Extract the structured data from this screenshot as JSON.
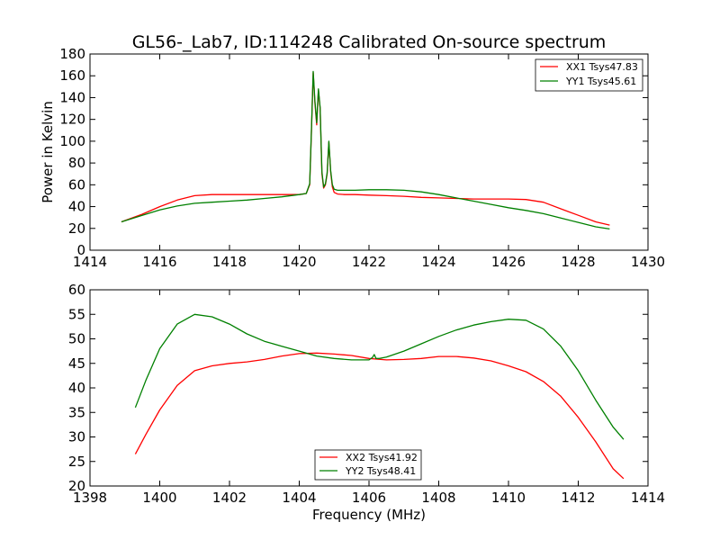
{
  "chart_data": [
    {
      "type": "line",
      "title": "GL56-_Lab7, ID:114248 Calibrated On-source spectrum",
      "xlabel": "",
      "ylabel": "Power in Kelvin",
      "xlim": [
        1414,
        1430
      ],
      "ylim": [
        0,
        180
      ],
      "xticks": [
        "1414",
        "1416",
        "1418",
        "1420",
        "1422",
        "1424",
        "1426",
        "1428",
        "1430"
      ],
      "yticks": [
        "0",
        "20",
        "40",
        "60",
        "80",
        "100",
        "120",
        "140",
        "160",
        "180"
      ],
      "legend_position": "upper right",
      "grid": false,
      "series": [
        {
          "name": "XX1 Tsys47.83",
          "color": "#ff0000",
          "x": [
            1414.9,
            1415.5,
            1416.0,
            1416.5,
            1417.0,
            1417.5,
            1418.0,
            1418.5,
            1419.0,
            1419.5,
            1420.0,
            1420.2,
            1420.3,
            1420.35,
            1420.4,
            1420.45,
            1420.5,
            1420.55,
            1420.6,
            1420.65,
            1420.7,
            1420.75,
            1420.8,
            1420.85,
            1420.9,
            1420.95,
            1421.0,
            1421.1,
            1421.3,
            1421.6,
            1422.0,
            1422.5,
            1423.0,
            1423.5,
            1424.0,
            1424.5,
            1425.0,
            1425.5,
            1426.0,
            1426.5,
            1427.0,
            1427.5,
            1428.0,
            1428.5,
            1428.9
          ],
          "y": [
            26,
            33,
            40,
            46,
            50,
            51,
            51,
            51,
            51,
            51,
            51,
            52,
            60,
            110,
            163,
            135,
            115,
            147,
            130,
            70,
            57,
            60,
            70,
            99,
            72,
            58,
            53,
            51.5,
            51,
            51,
            50.5,
            50,
            49.5,
            48.5,
            48,
            47.5,
            47,
            47,
            47,
            46.5,
            44,
            38,
            32,
            26,
            23
          ]
        },
        {
          "name": "YY1 Tsys45.61",
          "color": "#008000",
          "x": [
            1414.9,
            1415.5,
            1416.0,
            1416.5,
            1417.0,
            1417.5,
            1418.0,
            1418.5,
            1419.0,
            1419.5,
            1420.0,
            1420.2,
            1420.3,
            1420.35,
            1420.4,
            1420.45,
            1420.5,
            1420.55,
            1420.6,
            1420.65,
            1420.7,
            1420.75,
            1420.8,
            1420.85,
            1420.9,
            1420.95,
            1421.0,
            1421.1,
            1421.3,
            1421.6,
            1422.0,
            1422.5,
            1423.0,
            1423.5,
            1424.0,
            1424.5,
            1425.0,
            1425.5,
            1426.0,
            1426.5,
            1427.0,
            1427.5,
            1428.0,
            1428.5,
            1428.9
          ],
          "y": [
            26,
            32,
            37,
            40.5,
            43,
            44,
            45,
            46,
            47.5,
            49,
            51,
            52,
            61,
            112,
            164,
            137,
            117,
            148,
            131,
            72,
            58,
            61,
            71,
            100,
            73,
            60,
            56,
            55,
            55,
            55,
            55.5,
            55.5,
            55,
            53.5,
            51,
            48,
            45,
            42,
            39,
            36.5,
            33.5,
            29.5,
            25.5,
            21.5,
            19.5
          ]
        }
      ]
    },
    {
      "type": "line",
      "title": "",
      "xlabel": "Frequency (MHz)",
      "ylabel": "",
      "xlim": [
        1398,
        1414
      ],
      "ylim": [
        20,
        60
      ],
      "xticks": [
        "1398",
        "1400",
        "1402",
        "1404",
        "1406",
        "1408",
        "1410",
        "1412",
        "1414"
      ],
      "yticks": [
        "20",
        "25",
        "30",
        "35",
        "40",
        "45",
        "50",
        "55",
        "60"
      ],
      "legend_position": "lower center",
      "grid": false,
      "series": [
        {
          "name": "XX2 Tsys41.92",
          "color": "#ff0000",
          "x": [
            1399.3,
            1399.6,
            1400.0,
            1400.5,
            1401.0,
            1401.5,
            1402.0,
            1402.5,
            1403.0,
            1403.5,
            1404.0,
            1404.5,
            1405.0,
            1405.5,
            1406.0,
            1406.5,
            1407.0,
            1407.5,
            1408.0,
            1408.5,
            1409.0,
            1409.5,
            1410.0,
            1410.5,
            1411.0,
            1411.5,
            1412.0,
            1412.5,
            1413.0,
            1413.3
          ],
          "y": [
            26.5,
            30.5,
            35.5,
            40.5,
            43.5,
            44.5,
            45,
            45.3,
            45.8,
            46.5,
            47,
            47.1,
            46.9,
            46.6,
            46,
            45.7,
            45.8,
            46,
            46.4,
            46.4,
            46.1,
            45.5,
            44.5,
            43.3,
            41.3,
            38.3,
            34,
            29,
            23.5,
            21.5
          ]
        },
        {
          "name": "YY2 Tsys48.41",
          "color": "#008000",
          "x": [
            1399.3,
            1399.6,
            1400.0,
            1400.5,
            1401.0,
            1401.5,
            1402.0,
            1402.5,
            1403.0,
            1403.5,
            1404.0,
            1404.5,
            1405.0,
            1405.5,
            1406.0,
            1406.1,
            1406.15,
            1406.2,
            1406.3,
            1406.5,
            1407.0,
            1407.5,
            1408.0,
            1408.5,
            1409.0,
            1409.5,
            1410.0,
            1410.5,
            1411.0,
            1411.5,
            1412.0,
            1412.5,
            1413.0,
            1413.3
          ],
          "y": [
            36,
            41.5,
            48,
            53,
            55,
            54.5,
            53,
            51,
            49.5,
            48.5,
            47.5,
            46.5,
            46,
            45.7,
            45.7,
            46.2,
            46.8,
            46,
            46,
            46.3,
            47.5,
            49,
            50.5,
            51.8,
            52.8,
            53.5,
            54,
            53.8,
            52,
            48.5,
            43.5,
            37.5,
            32,
            29.5
          ]
        }
      ]
    }
  ]
}
